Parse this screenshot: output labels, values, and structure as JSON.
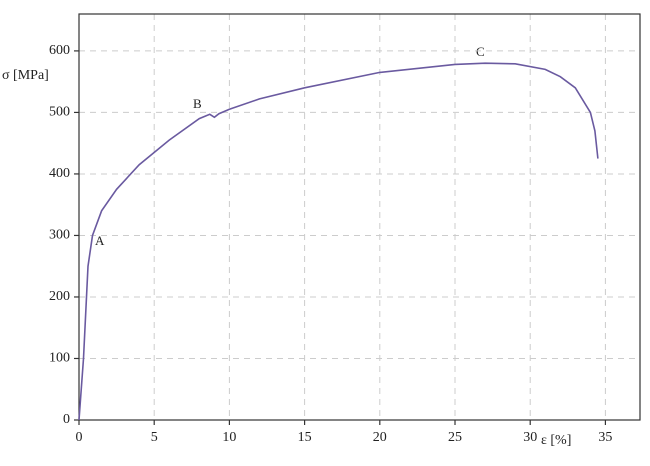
{
  "chart_data": {
    "type": "line",
    "y_label": "σ [MPa]",
    "x_label": "ε [%]",
    "annotations": [
      "A",
      "B",
      "C"
    ],
    "grid": true,
    "xlim": [
      0,
      37.3
    ],
    "ylim": [
      0,
      660
    ],
    "xticks": [
      0,
      5,
      10,
      15,
      20,
      25,
      30,
      35
    ],
    "yticks": [
      0,
      100,
      200,
      300,
      400,
      500,
      600
    ],
    "series": [
      {
        "color": "#6a5aa0",
        "x": [
          0,
          0.3,
          0.6,
          0.9,
          1.5,
          2.5,
          4,
          6,
          8,
          8.7,
          9,
          9.3,
          10,
          12,
          15,
          20,
          25,
          27,
          29,
          31,
          32,
          33,
          34,
          34.3,
          34.5
        ],
        "values": [
          0,
          100,
          250,
          300,
          340,
          375,
          415,
          455,
          490,
          497,
          492,
          498,
          505,
          522,
          540,
          565,
          578,
          580,
          579,
          570,
          558,
          540,
          500,
          470,
          425
        ]
      }
    ]
  }
}
